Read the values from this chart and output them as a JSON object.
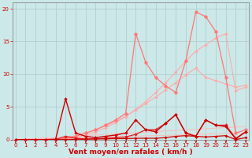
{
  "xlabel": "Vent moyen/en rafales ( km/h )",
  "x": [
    0,
    1,
    2,
    3,
    4,
    5,
    6,
    7,
    8,
    9,
    10,
    11,
    12,
    13,
    14,
    15,
    16,
    17,
    18,
    19,
    20,
    21,
    22,
    23
  ],
  "series": [
    {
      "y": [
        0,
        0.04,
        0.09,
        0.13,
        0.17,
        0.22,
        0.26,
        0.3,
        0.35,
        0.39,
        0.43,
        0.48,
        0.52,
        0.57,
        0.61,
        0.65,
        0.7,
        0.74,
        0.78,
        0.83,
        0.87,
        0.91,
        0.96,
        1.0
      ],
      "color": "#ffbbbb",
      "lw": 0.7,
      "marker": null,
      "ms": 0,
      "alpha": 1.0
    },
    {
      "y": [
        0,
        0.09,
        0.17,
        0.26,
        0.35,
        0.43,
        0.52,
        0.61,
        0.7,
        0.78,
        0.87,
        0.96,
        1.04,
        1.13,
        1.22,
        1.3,
        1.39,
        1.48,
        1.57,
        1.65,
        1.74,
        1.83,
        1.91,
        2.0
      ],
      "color": "#ffbbbb",
      "lw": 0.7,
      "marker": null,
      "ms": 0,
      "alpha": 1.0
    },
    {
      "y": [
        0,
        0,
        0,
        0,
        0.1,
        0.3,
        0.6,
        1.0,
        1.5,
        2.1,
        2.8,
        3.6,
        4.5,
        5.5,
        6.5,
        7.6,
        8.7,
        9.9,
        10.9,
        9.5,
        9.0,
        8.5,
        8.0,
        8.3
      ],
      "color": "#ffaaaa",
      "lw": 0.8,
      "marker": "D",
      "ms": 2.0,
      "alpha": 1.0
    },
    {
      "y": [
        0,
        0,
        0,
        0,
        0,
        0.1,
        0.3,
        0.7,
        1.2,
        1.8,
        2.6,
        3.5,
        4.6,
        5.8,
        7.2,
        8.7,
        10.3,
        12.0,
        13.5,
        14.5,
        15.5,
        16.2,
        7.5,
        8.0
      ],
      "color": "#ffaaaa",
      "lw": 0.8,
      "marker": "D",
      "ms": 2.0,
      "alpha": 1.0
    },
    {
      "y": [
        0,
        0,
        0,
        0,
        0,
        0.2,
        0.5,
        1.0,
        1.5,
        2.2,
        3.0,
        4.0,
        16.2,
        11.8,
        9.5,
        8.2,
        7.2,
        12.0,
        19.5,
        18.8,
        16.5,
        9.5,
        1.0,
        1.5
      ],
      "color": "#ff7777",
      "lw": 0.9,
      "marker": "D",
      "ms": 2.5,
      "alpha": 1.0
    },
    {
      "y": [
        0,
        0,
        0,
        0,
        0.0,
        0.5,
        0.2,
        0.1,
        0.1,
        0.2,
        0.3,
        0.4,
        0.8,
        1.5,
        1.5,
        2.5,
        3.8,
        1.0,
        0.5,
        3.0,
        2.2,
        2.2,
        0.2,
        1.2
      ],
      "color": "#dd2222",
      "lw": 0.9,
      "marker": "D",
      "ms": 2.0,
      "alpha": 1.0
    },
    {
      "y": [
        0,
        0,
        0,
        0,
        0.05,
        6.2,
        1.0,
        0.5,
        0.3,
        0.5,
        0.7,
        1.0,
        3.0,
        1.5,
        1.2,
        2.5,
        3.8,
        1.0,
        0.5,
        3.0,
        2.2,
        2.0,
        0.1,
        1.2
      ],
      "color": "#cc0000",
      "lw": 1.0,
      "marker": "D",
      "ms": 2.0,
      "alpha": 1.0
    },
    {
      "y": [
        0,
        0,
        0,
        0,
        0,
        0,
        0.05,
        0.05,
        0.1,
        0.1,
        0.15,
        0.15,
        0.2,
        0.2,
        0.2,
        0.3,
        0.5,
        0.6,
        0.5,
        0.4,
        0.5,
        0.6,
        0.0,
        0.3
      ],
      "color": "#cc0000",
      "lw": 0.9,
      "marker": "D",
      "ms": 1.8,
      "alpha": 1.0
    }
  ],
  "ylim": [
    0,
    21
  ],
  "xlim": [
    -0.3,
    23.3
  ],
  "yticks": [
    0,
    5,
    10,
    15,
    20
  ],
  "xticks": [
    0,
    1,
    2,
    3,
    4,
    5,
    6,
    7,
    8,
    9,
    10,
    11,
    12,
    13,
    14,
    15,
    16,
    17,
    18,
    19,
    20,
    21,
    22,
    23
  ],
  "bg_color": "#cce8e8",
  "grid_color": "#aacccc",
  "axis_color": "#888888",
  "text_color": "#cc0000",
  "label_fontsize": 6.5,
  "tick_fontsize": 5.0
}
